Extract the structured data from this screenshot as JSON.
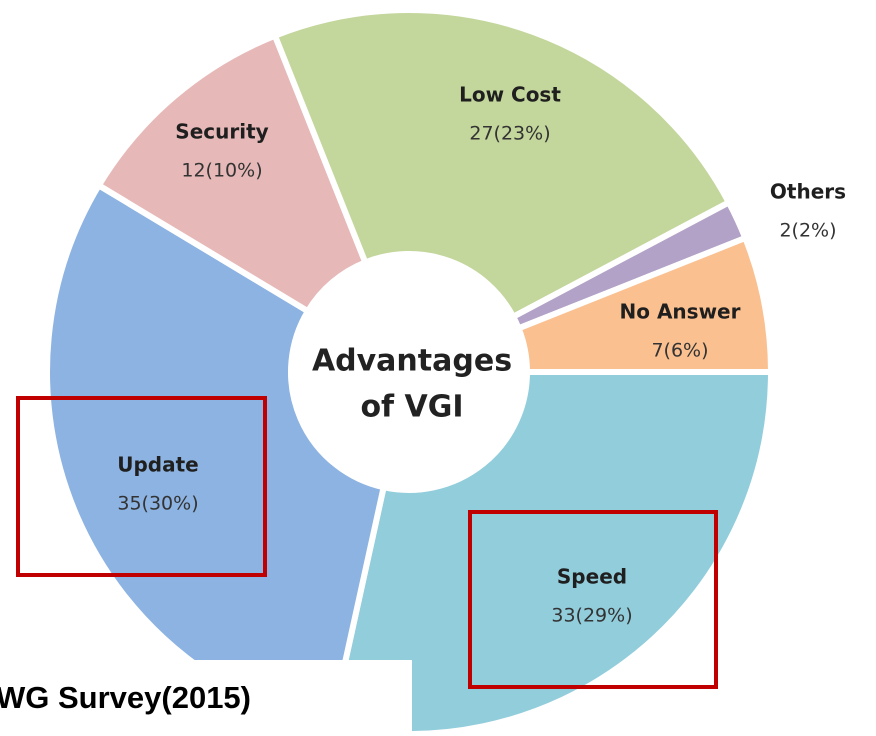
{
  "chart_data": {
    "type": "donut",
    "center_text": [
      "Advantages",
      "of VGI"
    ],
    "categories": [
      "Speed",
      "Update",
      "Security",
      "Low Cost",
      "Others",
      "No Answer"
    ],
    "values": [
      33,
      35,
      12,
      27,
      2,
      7
    ],
    "value_labels": [
      "33(29%)",
      "35(30%)",
      "12(10%)",
      "27(23%)",
      "2(2%)",
      "7(6%)"
    ],
    "colors": [
      "#92cddc",
      "#8db3e2",
      "#e6b9b8",
      "#c3d69b",
      "#b3a2c7",
      "#fac090"
    ],
    "source": "WG Survey(2015)"
  }
}
